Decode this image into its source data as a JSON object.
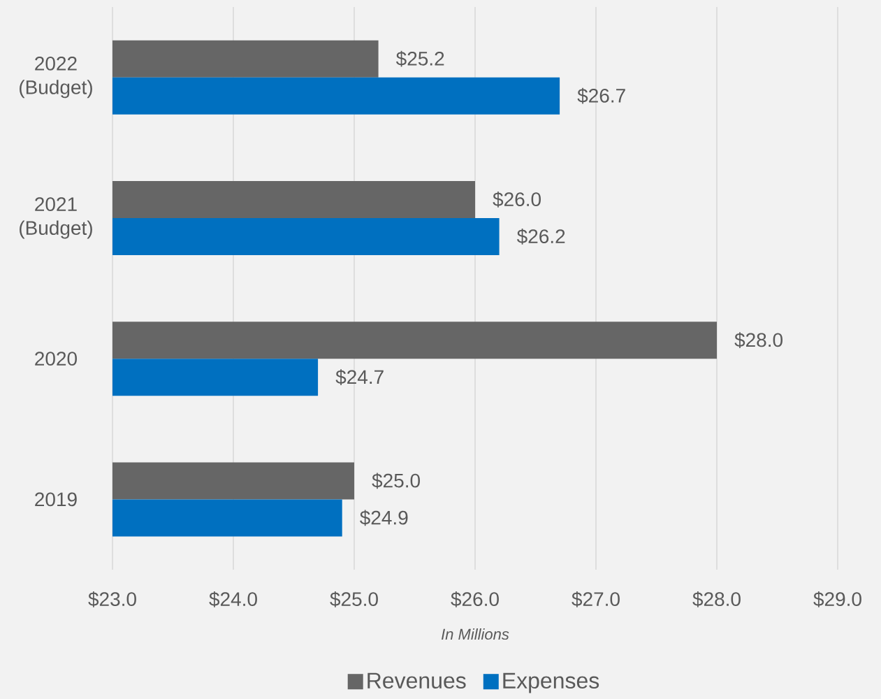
{
  "chart_data": {
    "type": "bar",
    "orientation": "horizontal",
    "categories": [
      "2022 (Budget)",
      "2021 (Budget)",
      "2020",
      "2019"
    ],
    "series": [
      {
        "name": "Revenues",
        "color": "#666666",
        "values": [
          25.2,
          26.0,
          28.0,
          25.0
        ],
        "value_labels": [
          "$25.2",
          "$26.0",
          "$28.0",
          "$25.0"
        ]
      },
      {
        "name": "Expenses",
        "color": "#0070c0",
        "values": [
          26.7,
          26.2,
          24.7,
          24.9
        ],
        "value_labels": [
          "$26.7",
          "$26.2",
          "$24.7",
          "$24.9"
        ]
      }
    ],
    "xlabel": "In Millions",
    "xlim": [
      23,
      29
    ],
    "xticks": [
      {
        "value": 23,
        "label": "$23.0"
      },
      {
        "value": 24,
        "label": "$24.0"
      },
      {
        "value": 25,
        "label": "$25.0"
      },
      {
        "value": 26,
        "label": "$26.0"
      },
      {
        "value": 27,
        "label": "$27.0"
      },
      {
        "value": 28,
        "label": "$28.0"
      },
      {
        "value": 29,
        "label": "$29.0"
      }
    ],
    "grid": "x",
    "legend": "bottom"
  }
}
